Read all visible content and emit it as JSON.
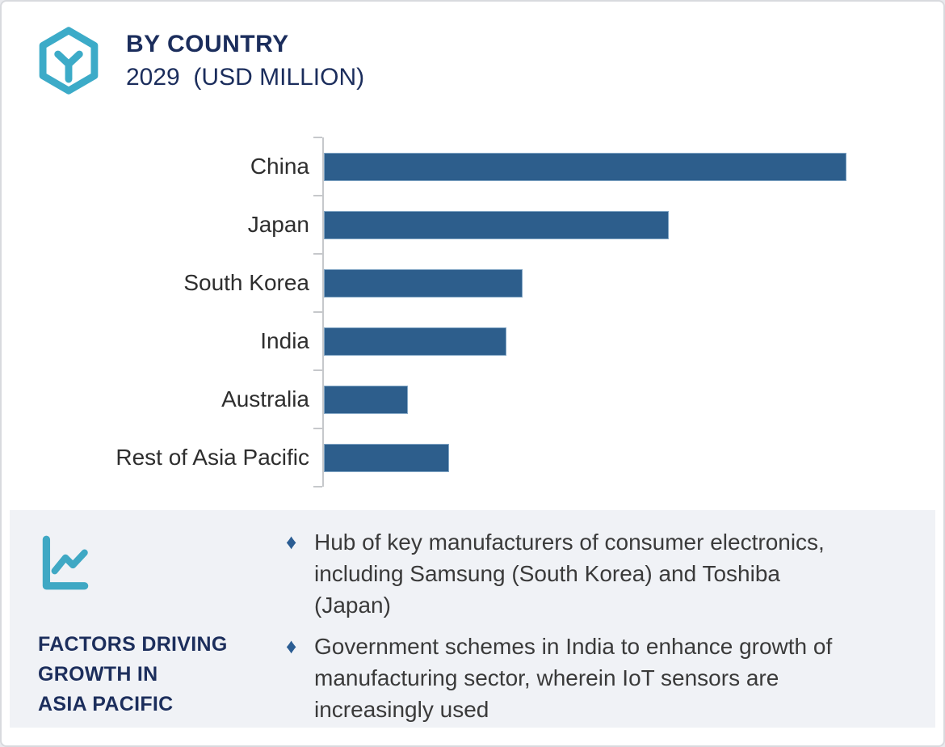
{
  "header": {
    "title": "BY COUNTRY",
    "subtitle": "2029  (USD MILLION)"
  },
  "chart_data": {
    "type": "bar",
    "orientation": "horizontal",
    "title": "BY COUNTRY",
    "subtitle": "2029 (USD MILLION)",
    "categories": [
      "China",
      "Japan",
      "South Korea",
      "India",
      "Australia",
      "Rest of Asia Pacific"
    ],
    "values": [
      100,
      66,
      38,
      35,
      16,
      24
    ],
    "units": "USD Million (bars unlabeled; values estimated relative to China = 100)",
    "xlabel": "",
    "ylabel": "",
    "grid": false,
    "legend": false,
    "bar_color": "#2d5e8c",
    "axis_color": "#c6c8cb"
  },
  "factors_panel": {
    "heading_lines": [
      "FACTORS DRIVING",
      "GROWTH IN",
      "ASIA PACIFIC"
    ],
    "bullet_marker": "♦",
    "bullets": [
      {
        "lines": [
          "Hub of key manufacturers of consumer electronics,",
          "including Samsung (South Korea) and Toshiba",
          "(Japan)"
        ]
      },
      {
        "lines": [
          "Government schemes in India to enhance growth of",
          "manufacturing sector, wherein IoT sensors are",
          "increasingly used"
        ]
      }
    ]
  },
  "colors": {
    "accent_teal": "#3cabc8",
    "navy": "#1b2d5c",
    "bar_blue": "#2d5e8c",
    "panel_bg": "#f0f2f6",
    "border": "#d8dade"
  },
  "icons": {
    "logo": "hexagon-y-logo",
    "factors": "line-chart-icon"
  }
}
